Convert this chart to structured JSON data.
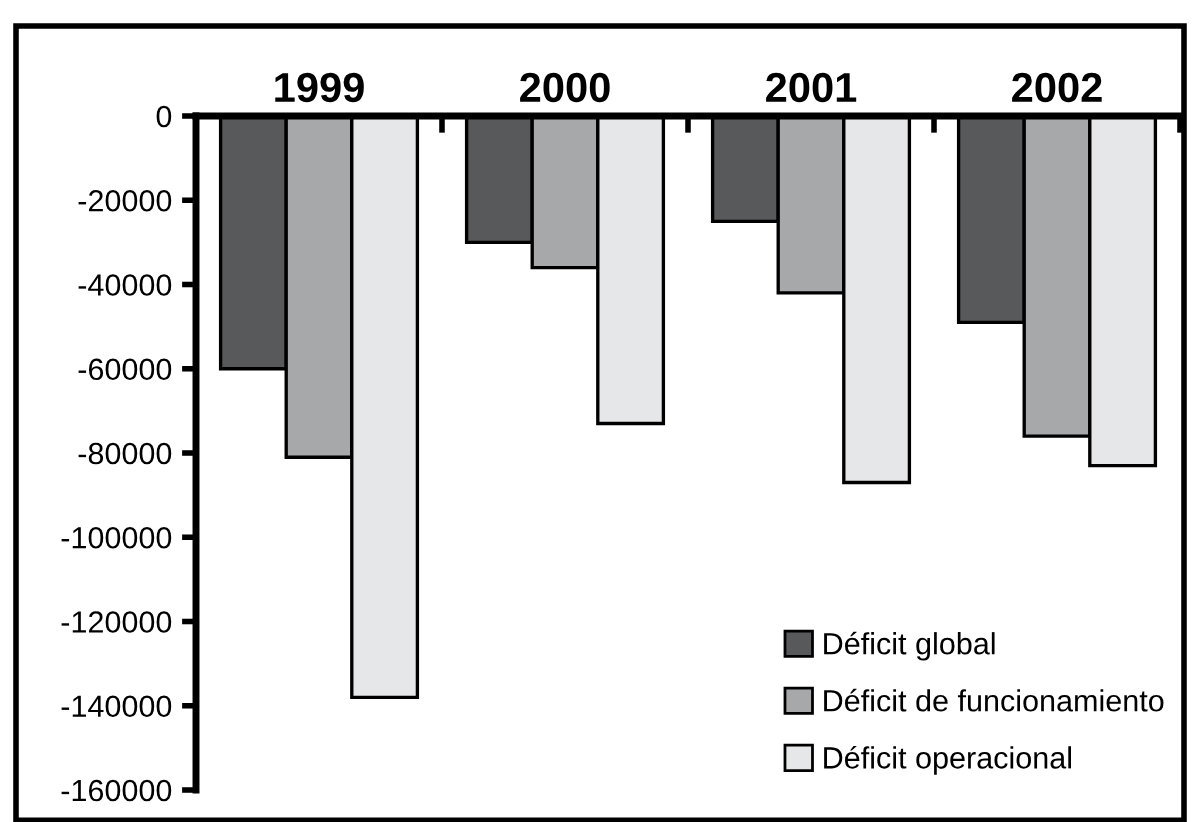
{
  "chart_data": {
    "type": "bar",
    "categories": [
      "1999",
      "2000",
      "2001",
      "2002"
    ],
    "series": [
      {
        "name": "Déficit global",
        "color": "#58595b",
        "values": [
          -60000,
          -30000,
          -25000,
          -49000
        ]
      },
      {
        "name": "Déficit de funcionamiento",
        "color": "#a7a8aa",
        "values": [
          -81000,
          -36000,
          -42000,
          -76000
        ]
      },
      {
        "name": "Déficit operacional",
        "color": "#e6e7e8",
        "values": [
          -138000,
          -73000,
          -87000,
          -83000
        ]
      }
    ],
    "ylim": [
      -160000,
      0
    ],
    "yticks": [
      0,
      -20000,
      -40000,
      -60000,
      -80000,
      -100000,
      -120000,
      -140000,
      -160000
    ],
    "grid": false,
    "legend": "bottom right"
  }
}
